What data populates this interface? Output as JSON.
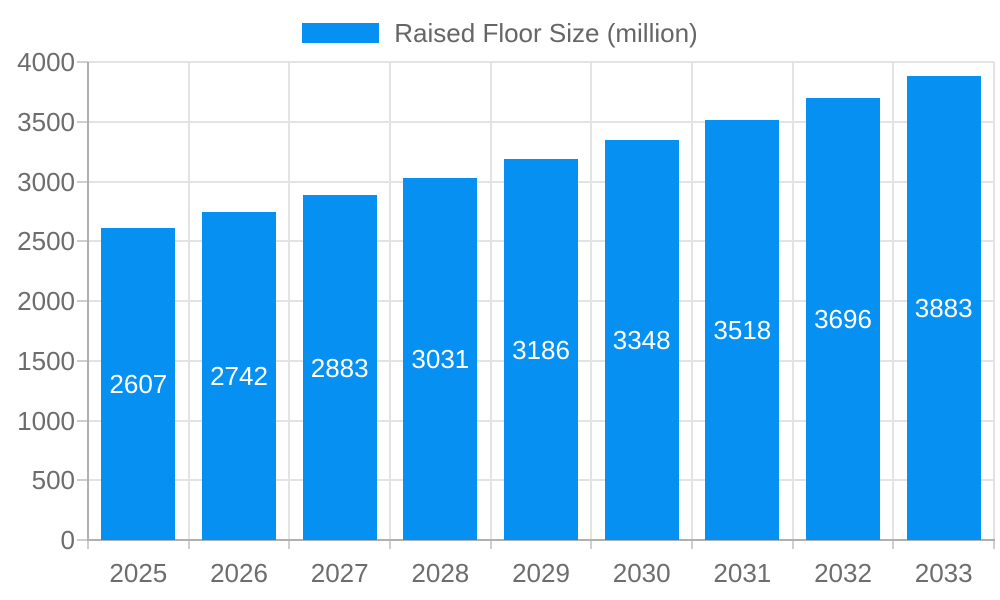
{
  "chart_data": {
    "type": "bar",
    "title": "",
    "categories": [
      "2025",
      "2026",
      "2027",
      "2028",
      "2029",
      "2030",
      "2031",
      "2032",
      "2033"
    ],
    "series": [
      {
        "name": "Raised Floor Size (million)",
        "values": [
          2607,
          2742,
          2883,
          3031,
          3186,
          3348,
          3518,
          3696,
          3883
        ]
      }
    ],
    "xlabel": "",
    "ylabel": "",
    "ylim": [
      0,
      4000
    ],
    "y_ticks": [
      0,
      500,
      1000,
      1500,
      2000,
      2500,
      3000,
      3500,
      4000
    ],
    "grid": true,
    "grid_vertical_at_category_boundaries": true,
    "legend_position": "top-center",
    "value_labels": "inside-bar-centered"
  },
  "legend": {
    "label": "Raised Floor Size (million)"
  },
  "colors": {
    "bar": "#0590f2",
    "grid": "#e3e3e3",
    "axis": "#b0b0b0",
    "tick": "#cfcfcf",
    "tick_text": "#6d6d6d",
    "legend_text": "#666666",
    "value_text": "#ffffff"
  }
}
